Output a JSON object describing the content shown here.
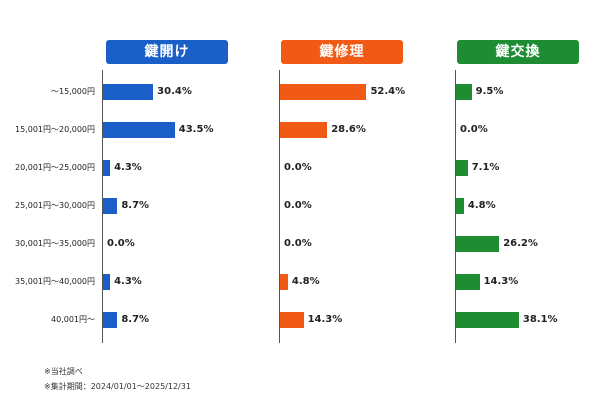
{
  "chart_data": {
    "type": "bar",
    "orientation": "horizontal",
    "categories": [
      "～15,000円",
      "15,001円～20,000円",
      "20,001円～25,000円",
      "25,001円～30,000円",
      "30,001円～35,000円",
      "35,001円～40,000円",
      "40,001円～"
    ],
    "series": [
      {
        "name": "鍵開け",
        "color": "#1a5fc8",
        "values": [
          30.4,
          43.5,
          4.3,
          8.7,
          0.0,
          4.3,
          8.7
        ],
        "labels": [
          "30.4%",
          "43.5%",
          "4.3%",
          "8.7%",
          "0.0%",
          "4.3%",
          "8.7%"
        ]
      },
      {
        "name": "鍵修理",
        "color": "#f05a14",
        "values": [
          52.4,
          28.6,
          0.0,
          0.0,
          0.0,
          4.8,
          14.3
        ],
        "labels": [
          "52.4%",
          "28.6%",
          "0.0%",
          "0.0%",
          "0.0%",
          "4.8%",
          "14.3%"
        ]
      },
      {
        "name": "鍵交換",
        "color": "#1e8c32",
        "values": [
          9.5,
          0.0,
          7.1,
          4.8,
          26.2,
          14.3,
          38.1
        ],
        "labels": [
          "9.5%",
          "0.0%",
          "7.1%",
          "4.8%",
          "26.2%",
          "14.3%",
          "38.1%"
        ]
      }
    ],
    "unit": "%",
    "xlim": [
      0,
      60
    ]
  },
  "footnotes": [
    "※当社調べ",
    "※集計期間：2024/01/01～2025/12/31"
  ]
}
